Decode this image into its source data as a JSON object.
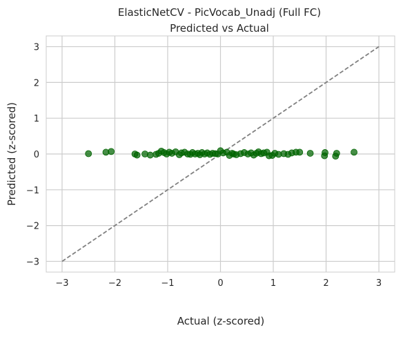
{
  "chart_data": {
    "type": "scatter",
    "title": "ElasticNetCV - PicVocab_Unadj (Full FC)",
    "subtitle": "Predicted vs Actual",
    "xlabel": "Actual (z-scored)",
    "ylabel": "Predicted (z-scored)",
    "xlim": [
      -3.3,
      3.3
    ],
    "ylim": [
      -3.3,
      3.3
    ],
    "xticks": [
      -3,
      -2,
      -1,
      0,
      1,
      2,
      3
    ],
    "yticks": [
      -3,
      -2,
      -1,
      0,
      1,
      2,
      3
    ],
    "xtick_labels": [
      "−3",
      "−2",
      "−1",
      "0",
      "1",
      "2",
      "3"
    ],
    "ytick_labels": [
      "−3",
      "−2",
      "−1",
      "0",
      "1",
      "2",
      "3"
    ],
    "grid": true,
    "colors": {
      "points": "#006400",
      "reference_line": "#808080",
      "grid": "#cccccc",
      "axes_bg": "#ffffff"
    },
    "reference_line": {
      "x": [
        -3,
        3
      ],
      "y": [
        -3,
        3
      ],
      "style": "dashed"
    },
    "series": [
      {
        "x": [
          -2.5,
          -2.17,
          -2.07,
          -1.62,
          -1.58,
          -1.43,
          -1.33,
          -1.22,
          -1.17,
          -1.12,
          -1.07,
          -1.02,
          -0.97,
          -0.92,
          -0.85,
          -0.78,
          -0.74,
          -0.68,
          -0.62,
          -0.57,
          -0.53,
          -0.48,
          -0.43,
          -0.39,
          -0.35,
          -0.3,
          -0.25,
          -0.2,
          -0.15,
          -0.1,
          -0.05,
          0.0,
          0.05,
          0.12,
          0.17,
          0.22,
          0.25,
          0.3,
          0.38,
          0.45,
          0.52,
          0.58,
          0.63,
          0.68,
          0.72,
          0.77,
          0.82,
          0.88,
          0.92,
          0.98,
          1.03,
          1.1,
          1.2,
          1.28,
          1.35,
          1.43,
          1.5,
          1.7,
          1.97,
          1.98,
          2.18,
          2.2,
          2.53
        ],
        "y": [
          0.01,
          0.05,
          0.07,
          0.0,
          -0.03,
          0.0,
          -0.03,
          -0.01,
          0.02,
          0.08,
          0.04,
          0.0,
          0.05,
          0.02,
          0.06,
          -0.02,
          0.03,
          0.05,
          0.0,
          -0.01,
          0.04,
          0.0,
          0.02,
          -0.02,
          0.04,
          0.0,
          0.03,
          -0.01,
          0.02,
          0.01,
          0.0,
          0.09,
          0.03,
          0.05,
          -0.04,
          0.02,
          0.0,
          -0.02,
          0.01,
          0.04,
          0.0,
          0.03,
          -0.03,
          0.02,
          0.06,
          0.01,
          0.03,
          0.05,
          -0.05,
          -0.04,
          0.02,
          -0.01,
          0.01,
          -0.01,
          0.03,
          0.05,
          0.05,
          0.02,
          -0.05,
          0.04,
          -0.06,
          0.02,
          0.05
        ]
      }
    ]
  }
}
